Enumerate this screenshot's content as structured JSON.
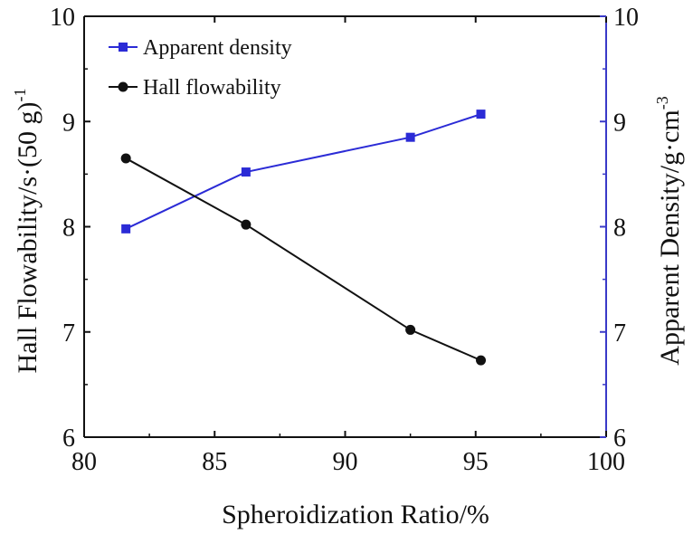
{
  "chart_data": {
    "type": "line",
    "title": "",
    "xlabel": "Spheroidization Ratio/%",
    "ylabel_left": "Hall Flowability/s·(50 g)",
    "ylabel_left_sup": "-1",
    "ylabel_right": "Apparent Density/g·cm",
    "ylabel_right_sup": "-3",
    "xlim": [
      80,
      100
    ],
    "ylim_left": [
      6,
      10
    ],
    "ylim_right": [
      6,
      10
    ],
    "x_ticks": [
      "80",
      "85",
      "90",
      "95",
      "100"
    ],
    "y_ticks_left": [
      "6",
      "7",
      "8",
      "9",
      "10"
    ],
    "y_ticks_right": [
      "6",
      "7",
      "8",
      "9",
      "10"
    ],
    "grid": false,
    "legend_position": "top-left",
    "right_axis_color": "#3a3ac8",
    "series": [
      {
        "name": "Apparent density",
        "axis": "right",
        "marker": "square",
        "color": "#2b2bd6",
        "x": [
          81.6,
          86.2,
          92.5,
          95.2
        ],
        "y": [
          7.98,
          8.52,
          8.85,
          9.07
        ]
      },
      {
        "name": "Hall flowability",
        "axis": "left",
        "marker": "circle",
        "color": "#111111",
        "x": [
          81.6,
          86.2,
          92.5,
          95.2
        ],
        "y": [
          8.65,
          8.02,
          7.02,
          6.73
        ]
      }
    ]
  }
}
